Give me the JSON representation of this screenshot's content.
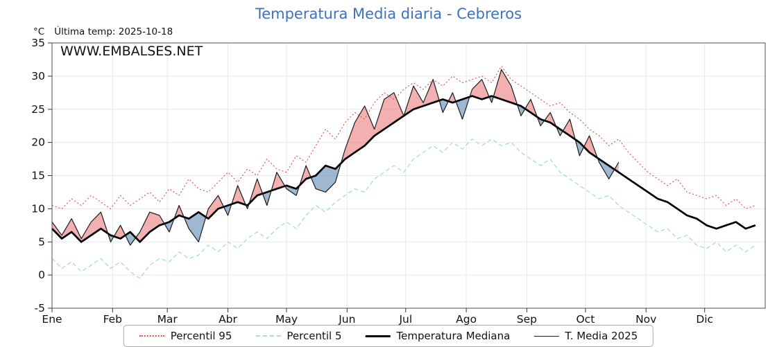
{
  "title": "Temperatura Media diaria - Cebreros",
  "header": {
    "y_unit": "°C",
    "last_temp": "Última temp: 2025-10-18"
  },
  "watermark": "WWW.EMBALSES.NET",
  "colors": {
    "title": "#3f72ba",
    "watermark": "#4a80c4"
  },
  "legend": [
    {
      "label": "Percentil 95",
      "style": "dotted",
      "color": "#e04848"
    },
    {
      "label": "Percentil 5",
      "style": "dashed",
      "color": "#a6d8e8"
    },
    {
      "label": "Temperatura Mediana",
      "style": "solid-thick",
      "color": "#000000"
    },
    {
      "label": "T. Media 2025",
      "style": "solid-thin",
      "color": "#1a1a1a"
    }
  ],
  "chart_data": {
    "type": "line",
    "title": "Temperatura Media diaria - Cebreros",
    "x_unit": "day_of_year",
    "xlim": [
      1,
      366
    ],
    "ylim": [
      -5,
      35
    ],
    "yticks": [
      -5,
      0,
      5,
      10,
      15,
      20,
      25,
      30,
      35
    ],
    "grid": true,
    "legend_position": "bottom",
    "months": [
      {
        "label": "Ene",
        "day": 1
      },
      {
        "label": "Feb",
        "day": 32
      },
      {
        "label": "Mar",
        "day": 60
      },
      {
        "label": "Abr",
        "day": 91
      },
      {
        "label": "May",
        "day": 121
      },
      {
        "label": "Jun",
        "day": 152
      },
      {
        "label": "Jul",
        "day": 182
      },
      {
        "label": "Ago",
        "day": 213
      },
      {
        "label": "Sep",
        "day": 244
      },
      {
        "label": "Oct",
        "day": 274
      },
      {
        "label": "Nov",
        "day": 305
      },
      {
        "label": "Dic",
        "day": 335
      }
    ],
    "x": [
      1,
      6,
      11,
      16,
      21,
      26,
      31,
      36,
      41,
      46,
      51,
      56,
      61,
      66,
      71,
      76,
      81,
      86,
      91,
      96,
      101,
      106,
      111,
      116,
      121,
      126,
      131,
      136,
      141,
      146,
      151,
      156,
      161,
      166,
      171,
      176,
      181,
      186,
      191,
      196,
      201,
      206,
      211,
      216,
      221,
      226,
      231,
      236,
      241,
      246,
      251,
      256,
      261,
      266,
      271,
      276,
      281,
      286,
      291,
      296,
      301,
      306,
      311,
      316,
      321,
      326,
      331,
      336,
      341,
      346,
      351,
      356,
      361
    ],
    "series": [
      {
        "name": "Percentil 95",
        "values": [
          10.5,
          10,
          11.5,
          10.5,
          12,
          11,
          10,
          12,
          10.5,
          11.5,
          12.5,
          11,
          13,
          12,
          14.5,
          13,
          12.5,
          14,
          15.5,
          14,
          16,
          15,
          17.5,
          16,
          15.5,
          18,
          17,
          19.5,
          22,
          20.5,
          23,
          24.5,
          23.5,
          26,
          27.5,
          26.5,
          28,
          29,
          28,
          29.5,
          28.5,
          30,
          29,
          29.5,
          30,
          29,
          31.5,
          29.5,
          28.5,
          27.5,
          26.5,
          25.5,
          26,
          24.5,
          23.5,
          22,
          21,
          19.5,
          20.5,
          18.5,
          17,
          15.5,
          14.5,
          13.5,
          14.5,
          12.5,
          12,
          11.5,
          12,
          10.5,
          11.5,
          10,
          10.5
        ]
      },
      {
        "name": "Percentil 5",
        "values": [
          2.5,
          1,
          2,
          0.5,
          1.5,
          2.5,
          1,
          2,
          0.5,
          -0.5,
          1.5,
          2.5,
          2,
          3.5,
          2.5,
          3,
          4.5,
          3.5,
          5,
          4,
          5.5,
          6.5,
          5.5,
          7,
          8,
          7,
          9,
          10.5,
          9.5,
          11,
          12,
          13,
          12.5,
          14.5,
          15.5,
          16.5,
          15.5,
          17.5,
          18.5,
          19.5,
          18.5,
          20,
          19,
          20.5,
          19.5,
          20.5,
          19.5,
          20,
          18.5,
          17.5,
          16.5,
          17.5,
          15.5,
          14.5,
          13.5,
          12.5,
          11.5,
          12,
          10.5,
          9.5,
          8.5,
          7.5,
          6.5,
          7,
          5.5,
          6,
          4.5,
          4,
          5,
          3.5,
          4.5,
          3.5,
          4.5
        ]
      },
      {
        "name": "Temperatura Mediana",
        "values": [
          7,
          5.5,
          6.5,
          5,
          6,
          7,
          6,
          5.5,
          6.5,
          5,
          6.5,
          7.5,
          8,
          9,
          8.5,
          9.5,
          8.5,
          10,
          10.5,
          11,
          10.5,
          12,
          12.5,
          13,
          13.5,
          13,
          14.5,
          15,
          16.5,
          16,
          17.5,
          18.5,
          19.5,
          21,
          22,
          23,
          24,
          25,
          25.5,
          26,
          26.5,
          26,
          26.5,
          27,
          26.5,
          27,
          26.5,
          26,
          25.5,
          24.5,
          23.5,
          23,
          22,
          21,
          20,
          18.5,
          17.5,
          16.5,
          15.5,
          14.5,
          13.5,
          12.5,
          11.5,
          11,
          10,
          9,
          8.5,
          7.5,
          7,
          7.5,
          8,
          7,
          7.5
        ]
      },
      {
        "name": "T. Media 2025",
        "last_date": "2025-10-18",
        "values": [
          8,
          6,
          8.5,
          5.5,
          8,
          9.5,
          5,
          7.5,
          4.5,
          6.5,
          9.5,
          9,
          6.5,
          10.5,
          7,
          5,
          10,
          12,
          9,
          13.5,
          10,
          14.5,
          10.5,
          15.5,
          13,
          12,
          16.5,
          13,
          12.5,
          14,
          19,
          23,
          25.5,
          22,
          26.5,
          27.5,
          24,
          28.5,
          26,
          29.5,
          24.5,
          27.5,
          23.5,
          28,
          29.5,
          26,
          31,
          28.5,
          24,
          26.5,
          22.5,
          24.5,
          21,
          23.5,
          18,
          21,
          17,
          14.5,
          17
        ]
      }
    ],
    "fill_above_color": "rgba(231,112,112,0.55)",
    "fill_below_color": "rgba(93,137,179,0.6)"
  }
}
